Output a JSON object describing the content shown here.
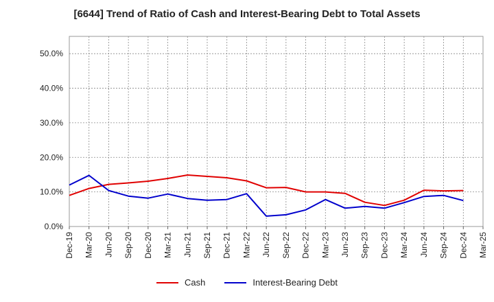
{
  "chart_data": {
    "type": "line",
    "title": "[6644]  Trend of Ratio of Cash and Interest-Bearing Debt to Total Assets",
    "xlabel": "",
    "ylabel": "",
    "ylim": [
      0,
      55
    ],
    "yticks": [
      "0.0%",
      "10.0%",
      "20.0%",
      "30.0%",
      "40.0%",
      "50.0%"
    ],
    "x_tick_labels": [
      "Dec-19",
      "Mar-20",
      "Jun-20",
      "Sep-20",
      "Dec-20",
      "Mar-21",
      "Jun-21",
      "Sep-21",
      "Dec-21",
      "Mar-22",
      "Jun-22",
      "Sep-22",
      "Dec-22",
      "Mar-23",
      "Jun-23",
      "Sep-23",
      "Dec-23",
      "Mar-24",
      "Jun-24",
      "Sep-24",
      "Dec-24",
      "Mar-25"
    ],
    "categories": [
      "Dec-19",
      "Mar-20",
      "Jun-20",
      "Sep-20",
      "Dec-20",
      "Mar-21",
      "Jun-21",
      "Sep-21",
      "Dec-21",
      "Mar-22",
      "Jun-22",
      "Sep-22",
      "Dec-22",
      "Mar-23",
      "Jun-23",
      "Sep-23",
      "Dec-23",
      "Mar-24",
      "Jun-24",
      "Sep-24",
      "Dec-24"
    ],
    "grid": true,
    "legend_position": "bottom",
    "series": [
      {
        "name": "Cash",
        "color": "#e00000",
        "values": [
          9.0,
          11.0,
          12.2,
          12.6,
          13.1,
          13.9,
          14.9,
          14.5,
          14.1,
          13.2,
          11.2,
          11.3,
          10.0,
          10.0,
          9.6,
          7.0,
          6.1,
          7.6,
          10.5,
          10.3,
          10.4
        ]
      },
      {
        "name": "Interest-Bearing Debt",
        "color": "#0000cc",
        "values": [
          12.0,
          14.8,
          10.4,
          8.8,
          8.2,
          9.4,
          8.1,
          7.6,
          7.8,
          9.5,
          3.0,
          3.4,
          4.8,
          7.8,
          5.3,
          5.8,
          5.3,
          6.9,
          8.7,
          9.0,
          7.5
        ]
      }
    ]
  }
}
